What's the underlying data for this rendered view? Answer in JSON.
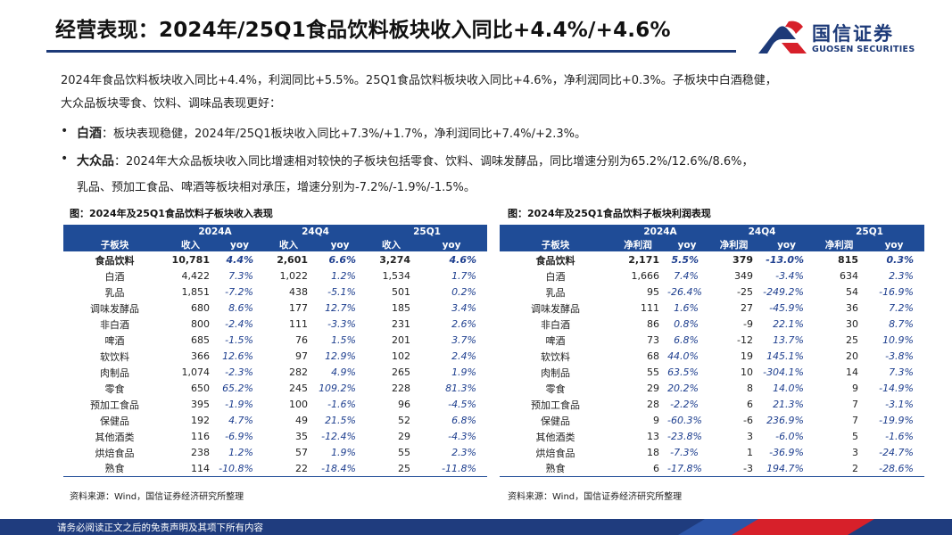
{
  "page": {
    "title": "经营表现：2024年/25Q1食品饮料板块收入同比+4.4%/+4.6%"
  },
  "logo": {
    "cn": "国信证券",
    "en": "GUOSEN SECURITIES",
    "colors": {
      "blue": "#1d3a78",
      "red": "#d7202a"
    }
  },
  "summary": {
    "line1": "2024年食品饮料板块收入同比+4.4%，利润同比+5.5%。25Q1食品饮料板块收入同比+4.6%，净利润同比+0.3%。子板块中白酒稳健，",
    "line2": "大众品板块零食、饮料、调味品表现更好：",
    "bullet_char": "•",
    "b1_label": "白酒",
    "b1_text": "：板块表现稳健，2024年/25Q1板块收入同比+7.3%/+1.7%，净利润同比+7.4%/+2.3%。",
    "b2_label": "大众品",
    "b2_text": "：2024年大众品板块收入同比增速相对较快的子板块包括零食、饮料、调味发酵品，同比增速分别为65.2%/12.6%/8.6%，",
    "b2_line2": "乳品、预加工食品、啤酒等板块相对承压，增速分别为-7.2%/-1.9%/-1.5%。"
  },
  "revenue_table": {
    "title": "图：2024年及25Q1食品饮料子板块收入表现",
    "periods": [
      "2024A",
      "24Q4",
      "25Q1"
    ],
    "headers": [
      "子板块",
      "收入",
      "yoy",
      "收入",
      "yoy",
      "收入",
      "yoy"
    ],
    "rows": [
      [
        "食品饮料",
        "10,781",
        "4.4%",
        "2,601",
        "6.6%",
        "3,274",
        "4.6%"
      ],
      [
        "白酒",
        "4,422",
        "7.3%",
        "1,022",
        "1.2%",
        "1,534",
        "1.7%"
      ],
      [
        "乳品",
        "1,851",
        "-7.2%",
        "438",
        "-5.1%",
        "501",
        "0.2%"
      ],
      [
        "调味发酵品",
        "680",
        "8.6%",
        "177",
        "12.7%",
        "185",
        "3.4%"
      ],
      [
        "非白酒",
        "800",
        "-2.4%",
        "111",
        "-3.3%",
        "231",
        "2.6%"
      ],
      [
        "啤酒",
        "685",
        "-1.5%",
        "76",
        "1.5%",
        "201",
        "3.7%"
      ],
      [
        "软饮料",
        "366",
        "12.6%",
        "97",
        "12.9%",
        "102",
        "2.4%"
      ],
      [
        "肉制品",
        "1,074",
        "-2.3%",
        "282",
        "4.9%",
        "265",
        "1.9%"
      ],
      [
        "零食",
        "650",
        "65.2%",
        "245",
        "109.2%",
        "228",
        "81.3%"
      ],
      [
        "预加工食品",
        "395",
        "-1.9%",
        "100",
        "-1.6%",
        "96",
        "-4.5%"
      ],
      [
        "保健品",
        "192",
        "4.7%",
        "49",
        "21.5%",
        "52",
        "6.8%"
      ],
      [
        "其他酒类",
        "116",
        "-6.9%",
        "35",
        "-12.4%",
        "29",
        "-4.3%"
      ],
      [
        "烘焙食品",
        "238",
        "1.2%",
        "57",
        "1.9%",
        "55",
        "2.3%"
      ],
      [
        "熟食",
        "114",
        "-10.8%",
        "22",
        "-18.4%",
        "25",
        "-11.8%"
      ]
    ],
    "source": "资料来源：Wind，国信证券经济研究所整理"
  },
  "profit_table": {
    "title": "图：2024年及25Q1食品饮料子板块利润表现",
    "periods": [
      "2024A",
      "24Q4",
      "25Q1"
    ],
    "headers": [
      "子板块",
      "净利润",
      "yoy",
      "净利润",
      "yoy",
      "净利润",
      "yoy"
    ],
    "rows": [
      [
        "食品饮料",
        "2,171",
        "5.5%",
        "379",
        "-13.0%",
        "815",
        "0.3%"
      ],
      [
        "白酒",
        "1,666",
        "7.4%",
        "349",
        "-3.4%",
        "634",
        "2.3%"
      ],
      [
        "乳品",
        "95",
        "-26.4%",
        "-25",
        "-249.2%",
        "54",
        "-16.9%"
      ],
      [
        "调味发酵品",
        "111",
        "1.6%",
        "27",
        "-45.9%",
        "36",
        "7.2%"
      ],
      [
        "非白酒",
        "86",
        "0.8%",
        "-9",
        "22.1%",
        "30",
        "8.7%"
      ],
      [
        "啤酒",
        "73",
        "6.8%",
        "-12",
        "13.7%",
        "25",
        "10.9%"
      ],
      [
        "软饮料",
        "68",
        "44.0%",
        "19",
        "145.1%",
        "20",
        "-3.8%"
      ],
      [
        "肉制品",
        "55",
        "63.5%",
        "10",
        "-304.1%",
        "14",
        "7.3%"
      ],
      [
        "零食",
        "29",
        "20.2%",
        "8",
        "14.0%",
        "9",
        "-14.9%"
      ],
      [
        "预加工食品",
        "28",
        "-2.2%",
        "6",
        "21.3%",
        "7",
        "-3.1%"
      ],
      [
        "保健品",
        "9",
        "-60.3%",
        "-6",
        "236.9%",
        "7",
        "-19.9%"
      ],
      [
        "其他酒类",
        "13",
        "-23.8%",
        "3",
        "-6.0%",
        "5",
        "-1.6%"
      ],
      [
        "烘焙食品",
        "18",
        "-7.3%",
        "1",
        "-36.9%",
        "3",
        "-24.7%"
      ],
      [
        "熟食",
        "6",
        "-17.8%",
        "-3",
        "194.7%",
        "2",
        "-28.6%"
      ]
    ],
    "source": "资料来源：Wind，国信证券经济研究所整理"
  },
  "footer": {
    "disclaimer": "请务必阅读正文之后的免责声明及其项下所有内容"
  }
}
